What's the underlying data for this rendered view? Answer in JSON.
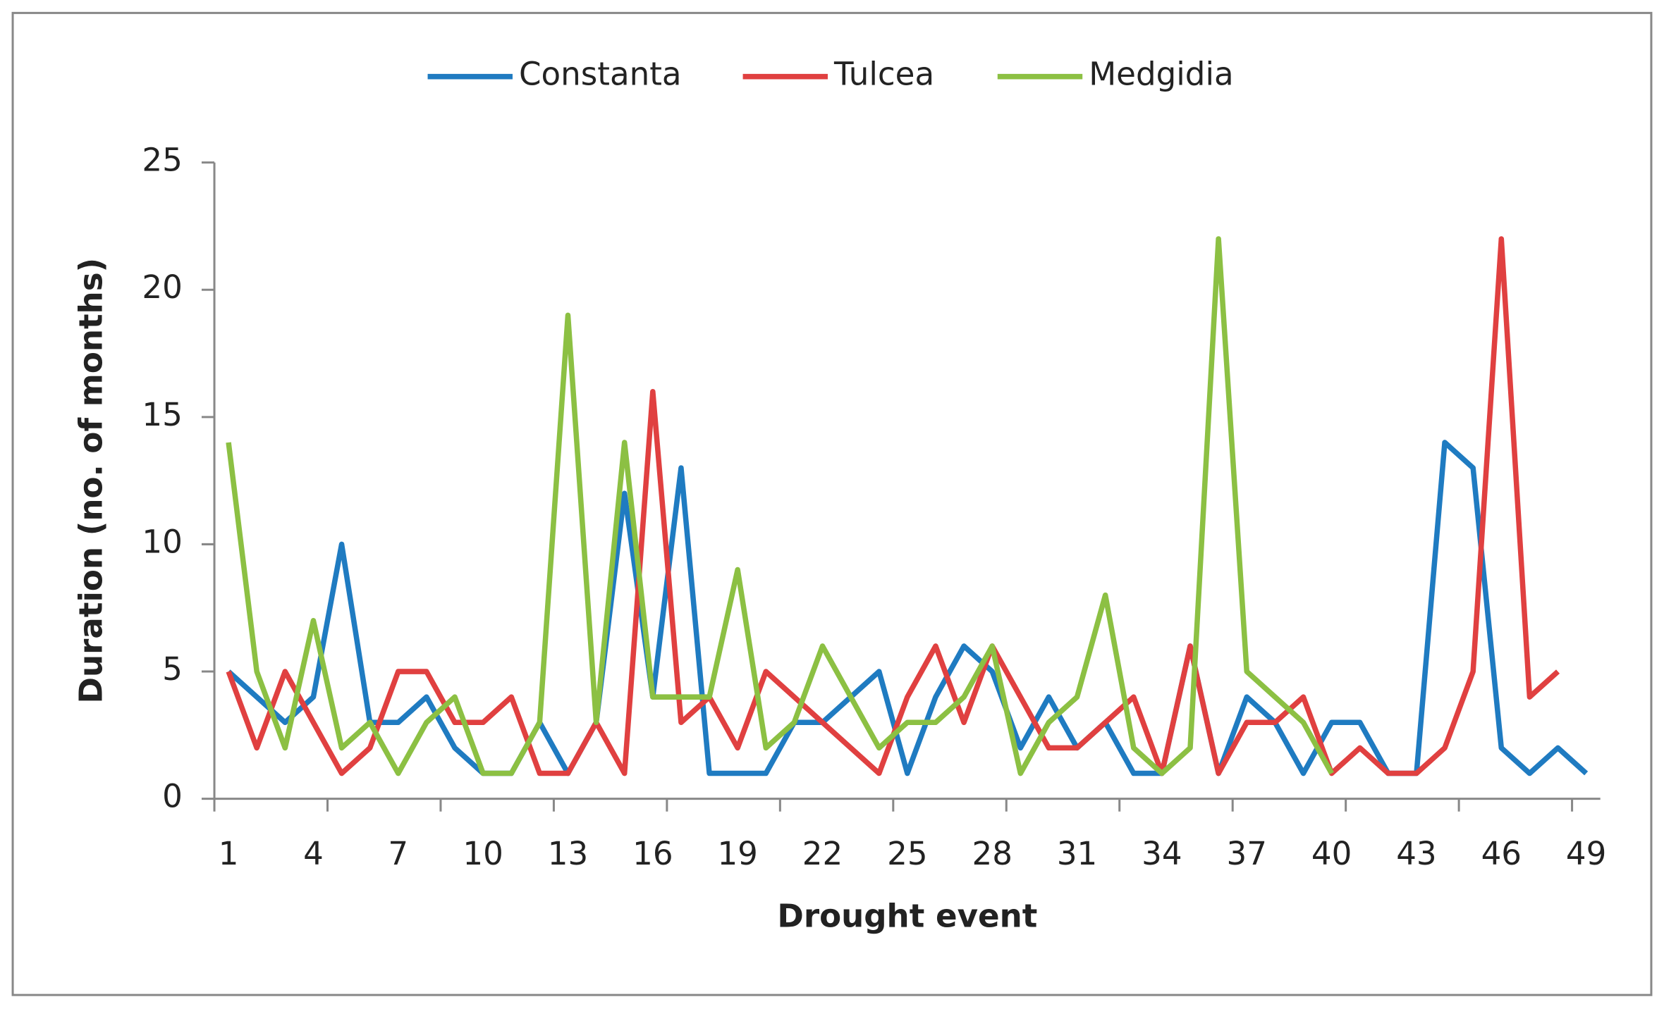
{
  "chart_data": {
    "type": "line",
    "x_label": "Drought event",
    "y_label": "Duration (no. of months)",
    "categories": [
      1,
      null,
      null,
      4,
      null,
      null,
      7,
      null,
      null,
      10,
      null,
      null,
      13,
      null,
      null,
      16,
      null,
      null,
      19,
      null,
      null,
      22,
      null,
      null,
      25,
      null,
      null,
      28,
      null,
      null,
      31,
      null,
      null,
      34,
      null,
      null,
      37,
      null,
      null,
      40,
      null,
      null,
      43,
      null,
      null,
      46,
      null,
      null,
      49
    ],
    "series": [
      {
        "name": "Constanta",
        "color": "#1f7bc1",
        "values": [
          5,
          4,
          3,
          4,
          10,
          3,
          3,
          4,
          2,
          1,
          1,
          3,
          1,
          3,
          12,
          4,
          13,
          1,
          1,
          1,
          3,
          3,
          4,
          5,
          1,
          4,
          6,
          5,
          2,
          4,
          2,
          3,
          1,
          1,
          6,
          1,
          4,
          3,
          1,
          3,
          3,
          1,
          1,
          14,
          13,
          2,
          1,
          2,
          1
        ]
      },
      {
        "name": "Tulcea",
        "color": "#e04040",
        "values": [
          5,
          2,
          5,
          3,
          1,
          2,
          5,
          5,
          3,
          3,
          4,
          1,
          1,
          3,
          1,
          16,
          3,
          4,
          2,
          5,
          4,
          3,
          2,
          1,
          4,
          6,
          3,
          6,
          4,
          2,
          2,
          3,
          4,
          1,
          6,
          1,
          3,
          3,
          4,
          1,
          2,
          1,
          1,
          2,
          5,
          22,
          4,
          5,
          null
        ]
      },
      {
        "name": "Medgidia",
        "color": "#8cc043",
        "values": [
          14,
          5,
          2,
          7,
          2,
          3,
          1,
          3,
          4,
          1,
          1,
          3,
          19,
          3,
          14,
          4,
          4,
          4,
          9,
          2,
          3,
          6,
          4,
          2,
          3,
          3,
          4,
          6,
          1,
          3,
          4,
          8,
          2,
          1,
          2,
          22,
          5,
          4,
          3,
          1,
          null,
          null,
          null,
          null,
          null,
          null,
          null,
          null,
          null
        ]
      }
    ],
    "ylim": [
      0,
      25
    ],
    "yticks": [
      0,
      5,
      10,
      15,
      20,
      25
    ],
    "legend": "top",
    "grid": false
  }
}
